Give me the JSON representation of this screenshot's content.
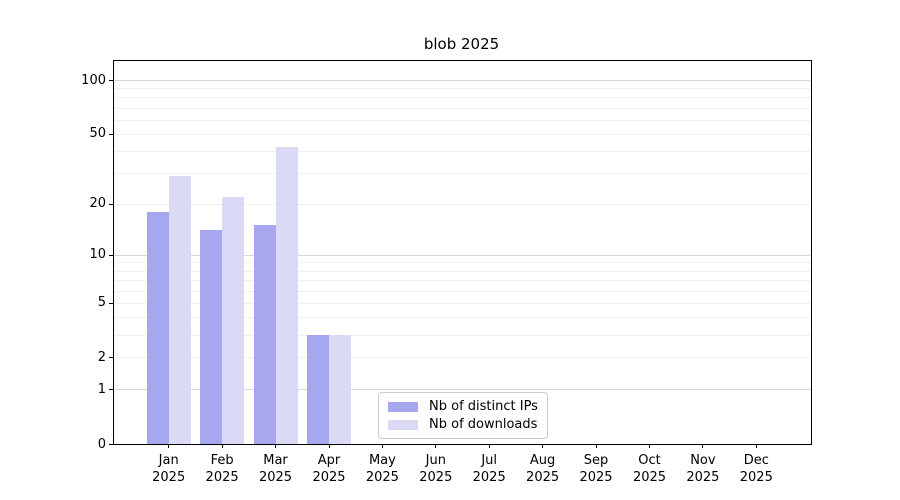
{
  "title": "blob 2025",
  "chart_data": {
    "type": "bar",
    "title": "blob 2025",
    "categories": [
      {
        "month": "Jan",
        "year": "2025"
      },
      {
        "month": "Feb",
        "year": "2025"
      },
      {
        "month": "Mar",
        "year": "2025"
      },
      {
        "month": "Apr",
        "year": "2025"
      },
      {
        "month": "May",
        "year": "2025"
      },
      {
        "month": "Jun",
        "year": "2025"
      },
      {
        "month": "Jul",
        "year": "2025"
      },
      {
        "month": "Aug",
        "year": "2025"
      },
      {
        "month": "Sep",
        "year": "2025"
      },
      {
        "month": "Oct",
        "year": "2025"
      },
      {
        "month": "Nov",
        "year": "2025"
      },
      {
        "month": "Dec",
        "year": "2025"
      }
    ],
    "series": [
      {
        "name": "Nb of distinct IPs",
        "color": "#a7a7f0",
        "values": [
          18,
          14,
          15,
          3,
          0,
          0,
          0,
          0,
          0,
          0,
          0,
          0
        ]
      },
      {
        "name": "Nb of downloads",
        "color": "#dadaf7",
        "values": [
          29,
          22,
          42,
          3,
          0,
          0,
          0,
          0,
          0,
          0,
          0,
          0
        ]
      }
    ],
    "xlabel": "",
    "ylabel": "",
    "y_scale": "log1p",
    "ylim": [
      0,
      127.5
    ],
    "y_ticks": [
      0,
      1,
      2,
      5,
      10,
      20,
      50,
      100
    ],
    "y_major_gridlines": [
      1,
      10,
      100
    ],
    "y_minor_gridlines": [
      2,
      3,
      4,
      5,
      6,
      7,
      8,
      9,
      20,
      30,
      40,
      50,
      60,
      70,
      80,
      90
    ],
    "grid": true,
    "legend_position": "bottom-center"
  },
  "colors": {
    "grid_minor": "#f0f0f0",
    "grid_major": "#d9d9d9",
    "spine": "#000000",
    "legend_border": "#cccccc",
    "background": "#ffffff",
    "text": "#000000"
  }
}
